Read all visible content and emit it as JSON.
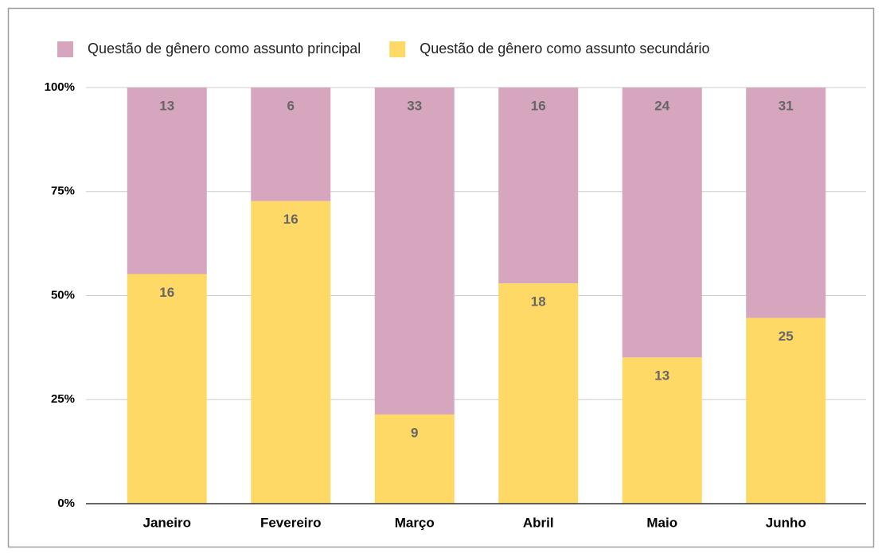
{
  "chart_data": {
    "type": "bar",
    "stacking": "percent",
    "categories": [
      "Janeiro",
      "Fevereiro",
      "Março",
      "Abril",
      "Maio",
      "Junho"
    ],
    "series": [
      {
        "name": "Questão de gênero como assunto principal",
        "color": "#d5a6bd",
        "values": [
          13,
          6,
          33,
          16,
          24,
          31
        ]
      },
      {
        "name": "Questão de gênero como assunto secundário",
        "color": "#ffd966",
        "values": [
          16,
          16,
          9,
          18,
          13,
          25
        ]
      }
    ],
    "ylim": [
      0,
      100
    ],
    "yticks": [
      {
        "value": 0,
        "label": "0%"
      },
      {
        "value": 25,
        "label": "25%"
      },
      {
        "value": 50,
        "label": "50%"
      },
      {
        "value": 75,
        "label": "75%"
      },
      {
        "value": 100,
        "label": "100%"
      }
    ],
    "grid": true,
    "legend": "top"
  }
}
